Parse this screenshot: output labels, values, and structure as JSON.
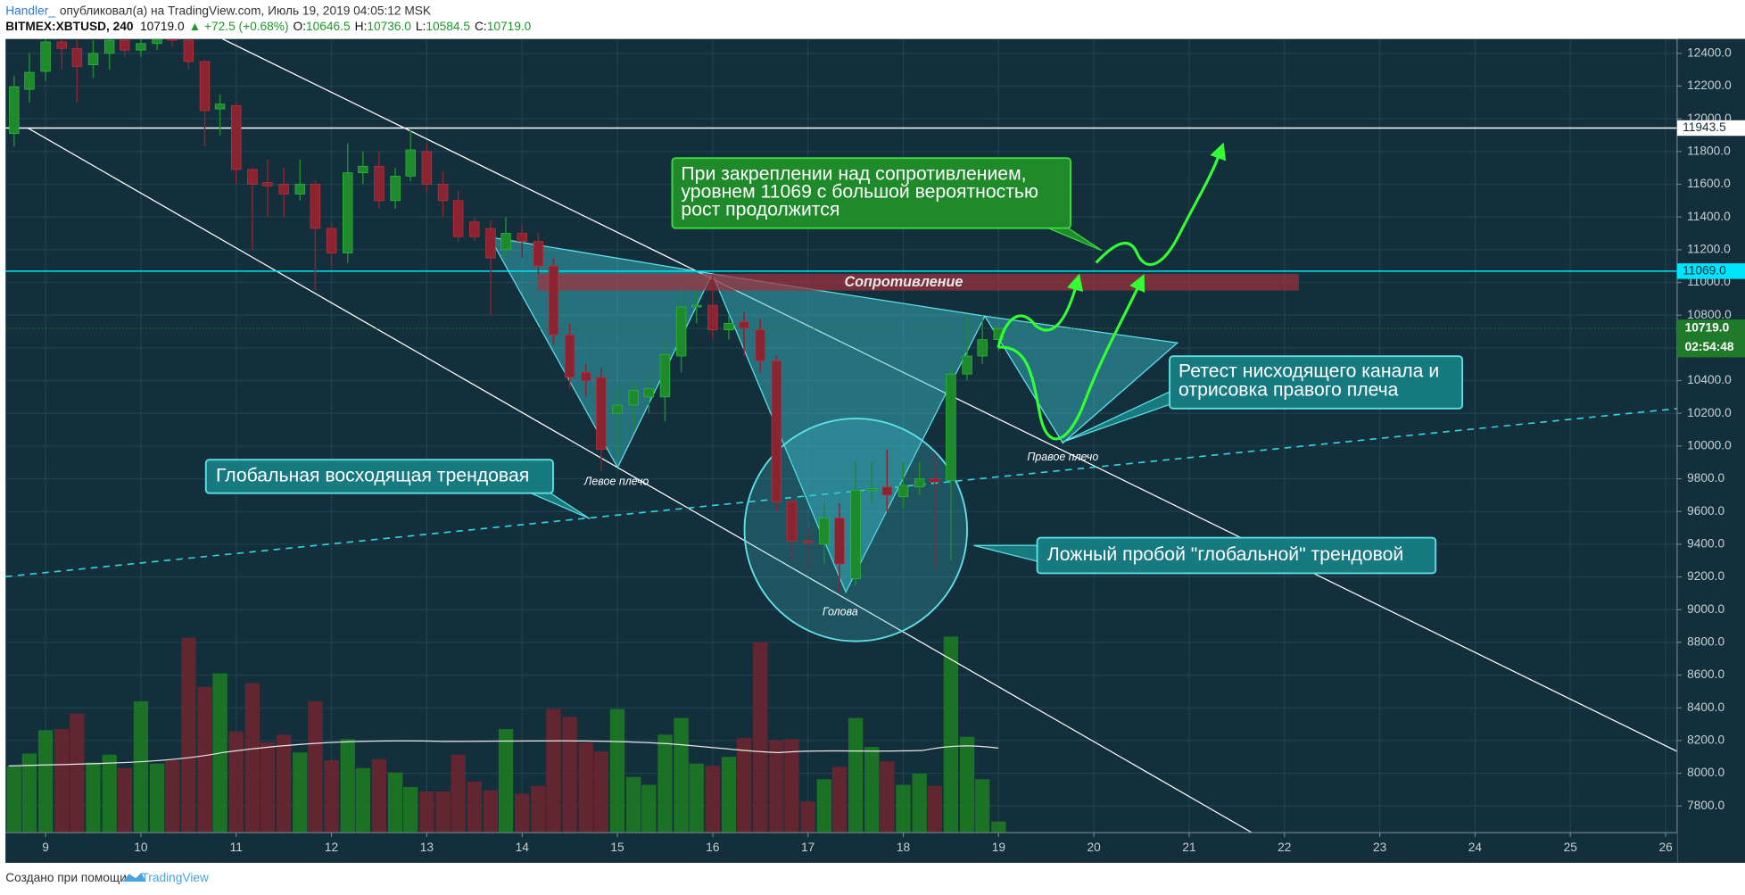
{
  "header": {
    "author": "Handler_",
    "published": "опубликовал(а) на TradingView.com, Июль 19, 2019 04:05:12 MSK",
    "symbol": "BITMEX:XBTUSD, 240",
    "last": "10719.0",
    "change": "▲ +72.5 (+0.68%)",
    "ohlc": [
      {
        "label": "O:",
        "value": "10646.5"
      },
      {
        "label": "H:",
        "value": "10736.0"
      },
      {
        "label": "L:",
        "value": "10584.5"
      },
      {
        "label": "C:",
        "value": "10719.0"
      }
    ]
  },
  "footer": {
    "text": "Создано при помощи",
    "brand": "TradingView"
  },
  "chart_data": {
    "type": "candlestick",
    "x": [
      8.67,
      8.83,
      9,
      9.17,
      9.33,
      9.5,
      9.67,
      9.83,
      10,
      10.17,
      10.33,
      10.5,
      10.67,
      10.83,
      11,
      11.17,
      11.33,
      11.5,
      11.67,
      11.83,
      12,
      12.17,
      12.33,
      12.5,
      12.67,
      12.83,
      13,
      13.17,
      13.33,
      13.5,
      13.67,
      13.83,
      14,
      14.17,
      14.33,
      14.5,
      14.67,
      14.83,
      15,
      15.17,
      15.33,
      15.5,
      15.67,
      15.83,
      16,
      16.17,
      16.33,
      16.5,
      16.67,
      16.83,
      17,
      17.17,
      17.33,
      17.5,
      17.67,
      17.83,
      18,
      18.17,
      18.33,
      18.5,
      18.67,
      18.83,
      19
    ],
    "open": [
      11910,
      12180,
      12290,
      12470,
      12430,
      12330,
      12400,
      12480,
      12420,
      12460,
      12500,
      12480,
      12350,
      12060,
      12080,
      11690,
      11610,
      11600,
      11540,
      11600,
      11330,
      11180,
      11670,
      11710,
      11500,
      11650,
      11800,
      11600,
      11500,
      11370,
      11330,
      11200,
      11300,
      11250,
      11100,
      10680,
      10450,
      10420,
      10200,
      10250,
      10300,
      10300,
      10550,
      10850,
      10860,
      10710,
      10760,
      10710,
      10520,
      9660,
      9420,
      9400,
      9560,
      9190,
      9730,
      9750,
      9690,
      9750,
      9800,
      9790,
      10440,
      10550,
      10650
    ],
    "high": [
      12264,
      12400,
      12500,
      12500,
      12480,
      12480,
      12500,
      12500,
      12500,
      12520,
      12520,
      12500,
      12360,
      12150,
      12100,
      11700,
      11750,
      11700,
      11750,
      11620,
      11360,
      11850,
      11800,
      11800,
      11700,
      11930,
      11850,
      11680,
      11560,
      11400,
      11380,
      11400,
      11350,
      11300,
      11150,
      10750,
      10500,
      10480,
      10350,
      10400,
      10450,
      10650,
      10960,
      10950,
      11050,
      10800,
      10820,
      10780,
      10550,
      9700,
      9500,
      9650,
      9650,
      9900,
      9900,
      9980,
      9900,
      9900,
      9950,
      10500,
      10800,
      10800,
      10736
    ],
    "low": [
      11829,
      12100,
      12230,
      12300,
      12100,
      12250,
      12300,
      12380,
      12380,
      12420,
      12440,
      12300,
      11830,
      11900,
      11600,
      11200,
      11400,
      11400,
      11500,
      10950,
      11100,
      11120,
      11600,
      11450,
      11450,
      11620,
      11550,
      11400,
      11250,
      11250,
      10800,
      11150,
      11150,
      11050,
      10620,
      10350,
      10300,
      9850,
      9950,
      10100,
      10200,
      10150,
      10450,
      10750,
      10650,
      10650,
      10550,
      10450,
      9600,
      9300,
      9250,
      9280,
      9100,
      9150,
      9650,
      9600,
      9620,
      9700,
      9250,
      9300,
      10400,
      10500,
      10584
    ],
    "close": [
      12196,
      12284,
      12470,
      12430,
      12320,
      12400,
      12480,
      12420,
      12460,
      12500,
      12480,
      12350,
      12050,
      12090,
      11690,
      11600,
      11590,
      11540,
      11600,
      11330,
      11180,
      11670,
      11710,
      11500,
      11650,
      11810,
      11600,
      11500,
      11280,
      11280,
      11150,
      11300,
      11250,
      11100,
      10680,
      10420,
      10400,
      9980,
      10250,
      10340,
      10350,
      10560,
      10850,
      10860,
      10710,
      10750,
      10720,
      10520,
      9660,
      9420,
      9410,
      9560,
      9280,
      9730,
      9740,
      9700,
      9760,
      9800,
      9780,
      10440,
      10550,
      10650,
      10719
    ],
    "volume": [
      60,
      71,
      92,
      93,
      107,
      63,
      70,
      58,
      118,
      62,
      65,
      175,
      131,
      143,
      91,
      134,
      81,
      88,
      72,
      118,
      65,
      84,
      58,
      66,
      54,
      41,
      37,
      37,
      70,
      46,
      38,
      93,
      35,
      42,
      111,
      104,
      81,
      73,
      111,
      50,
      43,
      88,
      103,
      62,
      60,
      68,
      85,
      171,
      83,
      84,
      28,
      48,
      59,
      103,
      77,
      64,
      43,
      53,
      42,
      176,
      86,
      48,
      10
    ],
    "up_color": "#1f8a2c",
    "down_color": "#8c2330",
    "volume_up_color": "#1d7a24",
    "volume_down_color": "#6a2630",
    "xlim": [
      8.58,
      26.12
    ],
    "xticks": [
      9,
      10,
      11,
      12,
      13,
      14,
      15,
      16,
      17,
      18,
      19,
      20,
      21,
      22,
      23,
      24,
      25,
      26
    ],
    "ylim": [
      7637,
      12488
    ],
    "yticks": [
      {
        "value": 7800,
        "label": "7800.0"
      },
      {
        "value": 8000,
        "label": "8000.0"
      },
      {
        "value": 8200,
        "label": "8200.0"
      },
      {
        "value": 8400,
        "label": "8400.0"
      },
      {
        "value": 8600,
        "label": "8600.0"
      },
      {
        "value": 8800,
        "label": "8800.0"
      },
      {
        "value": 9000,
        "label": "9000.0"
      },
      {
        "value": 9200,
        "label": "9200.0"
      },
      {
        "value": 9400,
        "label": "9400.0"
      },
      {
        "value": 9600,
        "label": "9600.0"
      },
      {
        "value": 9800,
        "label": "9800.0"
      },
      {
        "value": 10000,
        "label": "10000.0"
      },
      {
        "value": 10200,
        "label": "10200.0"
      },
      {
        "value": 10400,
        "label": "10400.0"
      },
      {
        "value": 10600,
        "label": "10600.0"
      },
      {
        "value": 10800,
        "label": "10800.0"
      },
      {
        "value": 11000,
        "label": "11000.0"
      },
      {
        "value": 11200,
        "label": "11200.0"
      },
      {
        "value": 11400,
        "label": "11400.0"
      },
      {
        "value": 11600,
        "label": "11600.0"
      },
      {
        "value": 11800,
        "label": "11800.0"
      },
      {
        "value": 12000,
        "label": "12000.0"
      },
      {
        "value": 12200,
        "label": "12200.0"
      },
      {
        "value": 12400,
        "label": "12400.0"
      }
    ],
    "grid": true,
    "hlines": [
      {
        "value": 11943.5,
        "color": "#ffffff"
      },
      {
        "value": 11069,
        "label": "11069.0",
        "color": "#00e5ff"
      }
    ],
    "last_price": {
      "value": 10719,
      "label": "10719.0",
      "countdown": "02:54:48",
      "color": "#1f7a2a"
    },
    "zone_label": "Сопротивление",
    "pattern_labels": [
      "Левое плечо",
      "Голова",
      "Правое плечо"
    ],
    "annotations": [
      {
        "lines": [
          "При закреплении над сопротивлением,",
          "уровнем 11069 с большой вероятностью",
          "рост продолжится"
        ]
      },
      {
        "lines": [
          "Глобальная восходящая трендовая"
        ]
      },
      {
        "lines": [
          "Ретест нисходящего канала и",
          "отрисовка правого плеча"
        ]
      },
      {
        "lines": [
          "Ложный пробой \"глобальной\" трендовой"
        ]
      }
    ]
  }
}
